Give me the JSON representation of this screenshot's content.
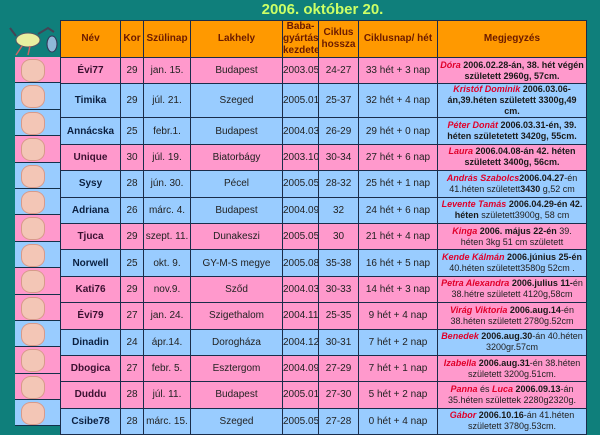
{
  "title": "2006. október 20.",
  "colors": {
    "background": "#0f7f7b",
    "header": "#ff9900",
    "pink_row": "#ff99cc",
    "blue_row": "#99ccff",
    "title": "#ccff66",
    "name_highlight": "#e0002a"
  },
  "icons": {
    "stork": "stork-icon",
    "baby": "baby-icon"
  },
  "headers": [
    "Név",
    "Kor",
    "Szülinap",
    "Lakhely",
    "Baba-gyártás kezdete",
    "Ciklus hossza",
    "Ciklusnap/ hét",
    "Megjegyzés"
  ],
  "rows": [
    {
      "color": "pink",
      "name": "Évi77",
      "age": "29",
      "birthday": "jan. 15.",
      "city": "Budapest",
      "start": "2003.05",
      "cycle": "24-27",
      "week": "33 hét + 3 nap",
      "note": [
        [
          "name",
          "Dóra"
        ],
        [
          "bold",
          " 2006.02.28-án, 38. hét végén született 2960g, 57cm."
        ]
      ]
    },
    {
      "color": "blue",
      "name": "Timika",
      "age": "29",
      "birthday": "júl. 21.",
      "city": "Szeged",
      "start": "2005.01",
      "cycle": "25-37",
      "week": "32 hét + 4 nap",
      "note": [
        [
          "name",
          "Kristóf Dominik"
        ],
        [
          "bold",
          " 2006.03.06-án,39.héten született 3300g,49 cm."
        ]
      ]
    },
    {
      "color": "blue",
      "name": "Annácska",
      "age": "25",
      "birthday": "febr.1.",
      "city": "Budapest",
      "start": "2004.03",
      "cycle": "26-29",
      "week": "29 hét + 0 nap",
      "note": [
        [
          "name",
          "Péter Donát"
        ],
        [
          "bold",
          " 2006.03.31-én, 39. héten születetett 3420g, 55cm."
        ]
      ]
    },
    {
      "color": "pink",
      "name": "Unique",
      "age": "30",
      "birthday": "júl. 19.",
      "city": "Biatorbágy",
      "start": "2003.10",
      "cycle": "30-34",
      "week": "27 hét + 6 nap",
      "note": [
        [
          "name",
          "Laura"
        ],
        [
          "bold",
          " 2006.04.08-án 42. héten született 3400g, 56cm."
        ]
      ]
    },
    {
      "color": "blue",
      "name": "Sysy",
      "age": "28",
      "birthday": "jún. 30.",
      "city": "Pécel",
      "start": "2005.05",
      "cycle": "28-32",
      "week": "25 hét + 1 nap",
      "note": [
        [
          "name",
          "András Szabolcs"
        ],
        [
          "bold",
          "2006.04.27"
        ],
        [
          "normal",
          "-én 41.héten született"
        ],
        [
          "bold",
          "3430"
        ],
        [
          "normal",
          " g,52 cm"
        ]
      ]
    },
    {
      "color": "blue",
      "name": "Adriana",
      "age": "26",
      "birthday": "márc. 4.",
      "city": "Budapest",
      "start": "2004.09",
      "cycle": "32",
      "week": "24 hét + 6 nap",
      "note": [
        [
          "name",
          "Levente Tamás"
        ],
        [
          "bold",
          " 2006.04.29-én 42. héten"
        ],
        [
          "normal",
          " született3900g, 58 cm"
        ]
      ]
    },
    {
      "color": "pink",
      "name": "Tjuca",
      "age": "29",
      "birthday": "szept. 11.",
      "city": "Dunakeszi",
      "start": "2005.05",
      "cycle": "30",
      "week": "21 hét + 4 nap",
      "note": [
        [
          "name",
          "Kinga"
        ],
        [
          "bold",
          " 2006. május 22-én"
        ],
        [
          "normal",
          " 39. héten 3kg 51 cm született"
        ]
      ]
    },
    {
      "color": "blue",
      "name": "Norwell",
      "age": "25",
      "birthday": "okt. 9.",
      "city": "GY-M-S megye",
      "start": "2005.08",
      "cycle": "35-38",
      "week": "16 hét + 5 nap",
      "note": [
        [
          "name",
          "Kende Kálmán"
        ],
        [
          "bold",
          " 2006.június 25-én"
        ],
        [
          "normal",
          " 40.héten született3580g 52cm ."
        ]
      ]
    },
    {
      "color": "pink",
      "name": "Kati76",
      "age": "29",
      "birthday": "nov.9.",
      "city": "Sződ",
      "start": "2004.03",
      "cycle": "30-33",
      "week": "14 hét + 3 nap",
      "note": [
        [
          "name",
          "Petra Alexandra"
        ],
        [
          "bold",
          " 2006.julius 11-"
        ],
        [
          "normal",
          "én 38.hétre született 4120g,58cm"
        ]
      ]
    },
    {
      "color": "pink",
      "name": "Évi79",
      "age": "27",
      "birthday": "jan. 24.",
      "city": "Szigethalom",
      "start": "2004.11",
      "cycle": "25-35",
      "week": "9 hét + 4 nap",
      "note": [
        [
          "name",
          "Virág Viktoria"
        ],
        [
          "bold",
          " 2006.aug.14"
        ],
        [
          "normal",
          "-én 38.héten született 2780g.52cm"
        ]
      ]
    },
    {
      "color": "blue",
      "name": "Dinadin",
      "age": "24",
      "birthday": "ápr.14.",
      "city": "Dorogháza",
      "start": "2004.12",
      "cycle": "30-31",
      "week": "7 hét + 2 nap",
      "note": [
        [
          "name",
          "Benedek"
        ],
        [
          "bold",
          " 2006.aug.30"
        ],
        [
          "normal",
          "-án 40.héten 3200gr.57cm"
        ]
      ]
    },
    {
      "color": "pink",
      "name": "Dbogica",
      "age": "27",
      "birthday": "febr. 5.",
      "city": "Esztergom",
      "start": "2004.09",
      "cycle": "27-29",
      "week": "7 hét + 1 nap",
      "note": [
        [
          "name",
          "Izabella"
        ],
        [
          "bold",
          " 2006.aug.31"
        ],
        [
          "normal",
          "-én 38.héten született 3200g.51cm."
        ]
      ]
    },
    {
      "color": "pink",
      "name": "Duddu",
      "age": "28",
      "birthday": "júl. 11.",
      "city": "Budapest",
      "start": "2005.01",
      "cycle": "27-30",
      "week": "5 hét + 2 nap",
      "note": [
        [
          "name",
          "Panna"
        ],
        [
          "normal",
          " és "
        ],
        [
          "name",
          "Luca"
        ],
        [
          "bold",
          " 2006.09.13"
        ],
        [
          "normal",
          "-án 35.héten születtek 2280g2320g."
        ]
      ]
    },
    {
      "color": "blue",
      "name": "Csibe78",
      "age": "28",
      "birthday": "márc. 15.",
      "city": "Szeged",
      "start": "2005.05",
      "cycle": "27-28",
      "week": "0 hét + 4 nap",
      "note": [
        [
          "name",
          "Gábor"
        ],
        [
          "bold",
          " 2006.10.16"
        ],
        [
          "normal",
          "-án 41.héten született 3780g.53cm."
        ]
      ]
    }
  ]
}
